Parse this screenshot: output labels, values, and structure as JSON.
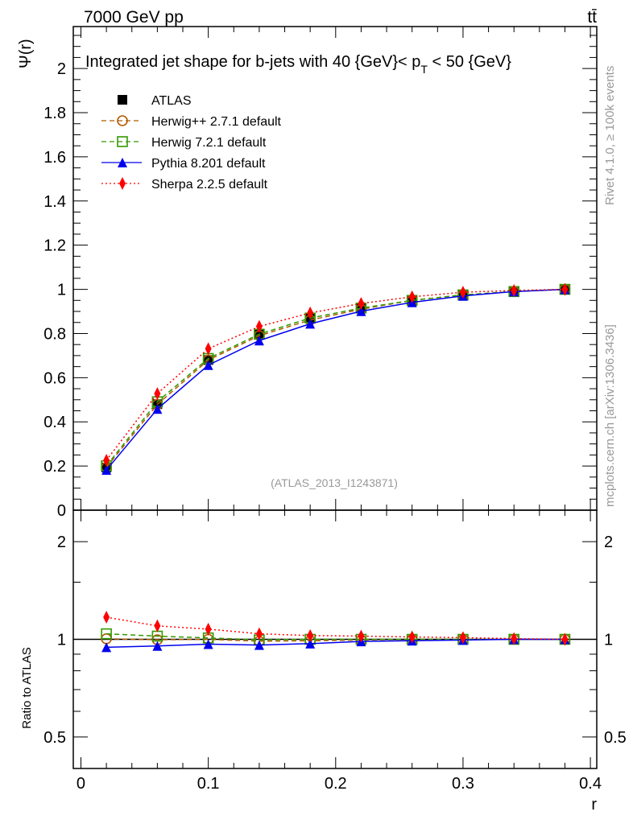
{
  "header": {
    "left": "7000 GeV pp",
    "right": "tt̄",
    "side_top": "Rivet 4.1.0, ≥ 100k events",
    "side_bottom": "mcplots.cern.ch [arXiv:1306.3436]",
    "analysis": "(ATLAS_2013_I1243871)"
  },
  "chart_data": [
    {
      "type": "line",
      "title": "Integrated jet shape for b-jets with 40 {GeV}< p_T < 50 {GeV}",
      "title_main": "Integrated jet shape for b-jets with 40 {GeV}< p",
      "title_sub": "T",
      "title_end": " < 50 {GeV}",
      "xlabel": "r",
      "ylabel": "Ψ(r)",
      "xlim": [
        -0.006,
        0.405
      ],
      "ylim": [
        0,
        2.19
      ],
      "yticks": [
        0,
        0.2,
        0.4,
        0.6,
        0.8,
        1,
        1.2,
        1.4,
        1.6,
        1.8,
        2
      ],
      "ytick_labels": [
        "0",
        "0.2",
        "0.4",
        "0.6",
        "0.8",
        "1",
        "1.2",
        "1.4",
        "1.6",
        "1.8",
        "2"
      ],
      "legend_position": "top-left",
      "x": [
        0.02,
        0.06,
        0.1,
        0.14,
        0.18,
        0.22,
        0.26,
        0.3,
        0.34,
        0.38
      ],
      "series": [
        {
          "name": "ATLAS",
          "color": "#000000",
          "marker": "square-filled",
          "line": "none",
          "values": [
            0.193,
            0.48,
            0.68,
            0.8,
            0.87,
            0.915,
            0.95,
            0.975,
            0.99,
            1.0
          ]
        },
        {
          "name": "Herwig++ 2.7.1 default",
          "color": "#b35900",
          "marker": "circle-open",
          "line": "dashed",
          "values": [
            0.194,
            0.479,
            0.68,
            0.79,
            0.861,
            0.91,
            0.95,
            0.975,
            0.99,
            1.0
          ]
        },
        {
          "name": "Herwig 7.2.1 default",
          "color": "#339900",
          "marker": "square-open",
          "line": "dashed",
          "values": [
            0.201,
            0.491,
            0.687,
            0.797,
            0.87,
            0.915,
            0.95,
            0.975,
            0.99,
            1.0
          ]
        },
        {
          "name": "Pythia 8.201 default",
          "color": "#0000ee",
          "marker": "triangle-filled",
          "line": "solid",
          "values": [
            0.182,
            0.458,
            0.657,
            0.768,
            0.844,
            0.901,
            0.941,
            0.97,
            0.99,
            1.0
          ]
        },
        {
          "name": "Sherpa 2.2.5 default",
          "color": "#ff0000",
          "marker": "diamond-filled",
          "line": "dotted",
          "values": [
            0.226,
            0.528,
            0.731,
            0.832,
            0.893,
            0.936,
            0.966,
            0.987,
            0.995,
            1.0
          ]
        }
      ]
    },
    {
      "type": "line",
      "title": "",
      "xlabel": "r",
      "ylabel": "Ratio to ATLAS",
      "yscale": "log",
      "xlim": [
        -0.006,
        0.405
      ],
      "ylim": [
        0.4,
        2.5
      ],
      "yticks": [
        0.5,
        1,
        2
      ],
      "ytick_labels": [
        "0.5",
        "1",
        "2"
      ],
      "xticks": [
        0,
        0.1,
        0.2,
        0.3,
        0.4
      ],
      "xtick_labels": [
        "0",
        "0.1",
        "0.2",
        "0.3",
        "0.4"
      ],
      "x": [
        0.02,
        0.06,
        0.1,
        0.14,
        0.18,
        0.22,
        0.26,
        0.3,
        0.34,
        0.38
      ],
      "series": [
        {
          "name": "Herwig++ 2.7.1 default",
          "values": [
            1.004,
            0.997,
            1.0,
            0.987,
            0.99,
            0.995,
            1.0,
            1.0,
            1.0,
            1.0
          ]
        },
        {
          "name": "Herwig 7.2.1 default",
          "values": [
            1.04,
            1.023,
            1.01,
            0.996,
            1.0,
            1.0,
            1.0,
            1.0,
            1.0,
            1.0
          ]
        },
        {
          "name": "Pythia 8.201 default",
          "values": [
            0.945,
            0.954,
            0.966,
            0.96,
            0.97,
            0.985,
            0.99,
            0.995,
            1.0,
            1.0
          ]
        },
        {
          "name": "Sherpa 2.2.5 default",
          "values": [
            1.17,
            1.1,
            1.075,
            1.04,
            1.027,
            1.023,
            1.017,
            1.012,
            1.005,
            1.0
          ]
        }
      ]
    }
  ]
}
